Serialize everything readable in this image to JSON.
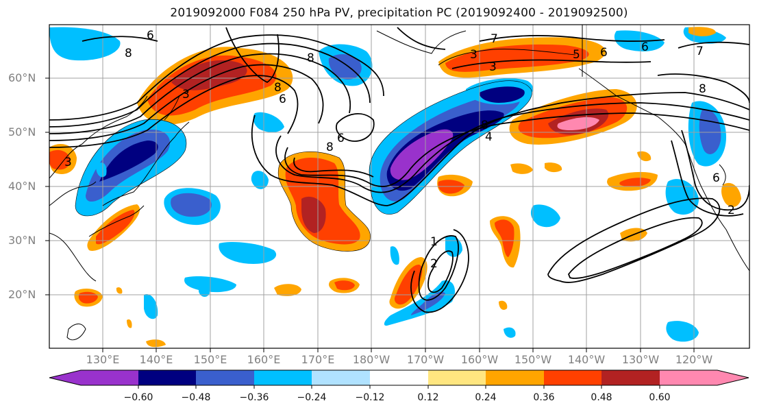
{
  "title": "2019092000 F084 250 hPa PV, precipitation PC (2019092400 - 2019092500)",
  "lat_labels": [
    "60°N",
    "50°N",
    "40°N",
    "30°N",
    "20°N"
  ],
  "lon_labels": [
    "130°E",
    "140°E",
    "150°E",
    "160°E",
    "170°E",
    "180°W",
    "170°W",
    "160°W",
    "150°W",
    "140°W",
    "130°W",
    "120°W"
  ],
  "contour_labels": [
    "6",
    "8",
    "3",
    "8",
    "3",
    "8",
    "6",
    "8",
    "6",
    "3",
    "7",
    "3",
    "5",
    "6",
    "6",
    "7",
    "8",
    "8",
    "4",
    "6",
    "1",
    "2",
    "2"
  ],
  "colorbar": {
    "ticks": [
      "−0.60",
      "−0.48",
      "−0.36",
      "−0.24",
      "−0.12",
      "0.12",
      "0.24",
      "0.36",
      "0.48",
      "0.60"
    ],
    "colors": [
      "#9932CC",
      "#000080",
      "#3A5FCD",
      "#00BFFF",
      "#B0E2FF",
      "#FFFFFF",
      "#FFE680",
      "#FFA500",
      "#FF4000",
      "#B22222",
      "#FF88B0"
    ]
  }
}
